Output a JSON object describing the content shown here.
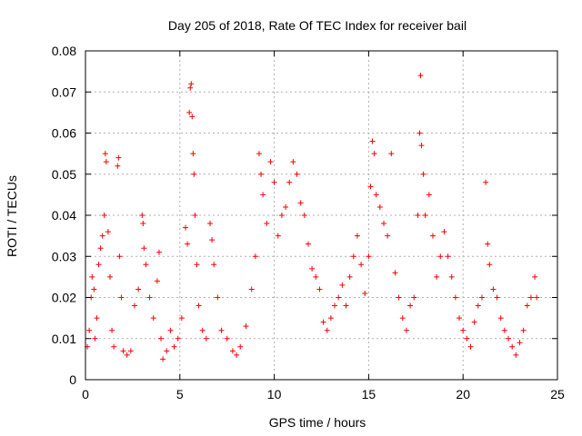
{
  "chart_data": {
    "type": "scatter",
    "title": "Day 205 of 2018, Rate Of TEC Index for receiver bail",
    "xlabel": "GPS time / hours",
    "ylabel": "ROTI / TECUs",
    "xlim": [
      0,
      25
    ],
    "ylim": [
      0,
      0.08
    ],
    "x_ticks": [
      "0",
      "5",
      "10",
      "15",
      "20",
      "25"
    ],
    "y_ticks": [
      "0",
      "0.01",
      "0.02",
      "0.03",
      "0.04",
      "0.05",
      "0.06",
      "0.07",
      "0.08"
    ],
    "x_tick_values": [
      0,
      5,
      10,
      15,
      20,
      25
    ],
    "y_tick_values": [
      0,
      0.01,
      0.02,
      0.03,
      0.04,
      0.05,
      0.06,
      0.07,
      0.08
    ],
    "grid": true,
    "marker": "plus",
    "color": "#ff0000",
    "series": [
      {
        "points": [
          [
            0.1,
            0.008
          ],
          [
            0.2,
            0.012
          ],
          [
            0.3,
            0.02
          ],
          [
            0.35,
            0.025
          ],
          [
            0.45,
            0.022
          ],
          [
            0.5,
            0.01
          ],
          [
            0.6,
            0.015
          ],
          [
            0.7,
            0.028
          ],
          [
            0.8,
            0.032
          ],
          [
            0.9,
            0.035
          ],
          [
            1.0,
            0.04
          ],
          [
            1.05,
            0.055
          ],
          [
            1.1,
            0.053
          ],
          [
            1.2,
            0.036
          ],
          [
            1.3,
            0.025
          ],
          [
            1.4,
            0.012
          ],
          [
            1.5,
            0.008
          ],
          [
            1.7,
            0.052
          ],
          [
            1.75,
            0.054
          ],
          [
            1.8,
            0.03
          ],
          [
            1.9,
            0.02
          ],
          [
            2.0,
            0.007
          ],
          [
            2.2,
            0.006
          ],
          [
            2.4,
            0.007
          ],
          [
            2.6,
            0.018
          ],
          [
            2.8,
            0.022
          ],
          [
            3.0,
            0.04
          ],
          [
            3.05,
            0.038
          ],
          [
            3.1,
            0.032
          ],
          [
            3.2,
            0.028
          ],
          [
            3.4,
            0.02
          ],
          [
            3.6,
            0.015
          ],
          [
            3.8,
            0.024
          ],
          [
            3.9,
            0.031
          ],
          [
            4.0,
            0.01
          ],
          [
            4.1,
            0.005
          ],
          [
            4.3,
            0.007
          ],
          [
            4.5,
            0.012
          ],
          [
            4.7,
            0.008
          ],
          [
            4.9,
            0.01
          ],
          [
            5.1,
            0.015
          ],
          [
            5.3,
            0.037
          ],
          [
            5.4,
            0.033
          ],
          [
            5.5,
            0.065
          ],
          [
            5.55,
            0.071
          ],
          [
            5.6,
            0.072
          ],
          [
            5.65,
            0.064
          ],
          [
            5.7,
            0.055
          ],
          [
            5.75,
            0.05
          ],
          [
            5.8,
            0.04
          ],
          [
            5.9,
            0.028
          ],
          [
            6.0,
            0.018
          ],
          [
            6.2,
            0.012
          ],
          [
            6.4,
            0.01
          ],
          [
            6.6,
            0.038
          ],
          [
            6.7,
            0.034
          ],
          [
            6.8,
            0.028
          ],
          [
            7.0,
            0.02
          ],
          [
            7.2,
            0.012
          ],
          [
            7.5,
            0.01
          ],
          [
            7.8,
            0.007
          ],
          [
            8.0,
            0.006
          ],
          [
            8.2,
            0.008
          ],
          [
            8.5,
            0.013
          ],
          [
            8.8,
            0.022
          ],
          [
            9.0,
            0.03
          ],
          [
            9.2,
            0.055
          ],
          [
            9.3,
            0.05
          ],
          [
            9.4,
            0.045
          ],
          [
            9.6,
            0.038
          ],
          [
            9.8,
            0.053
          ],
          [
            10.0,
            0.048
          ],
          [
            10.2,
            0.035
          ],
          [
            10.4,
            0.04
          ],
          [
            10.6,
            0.042
          ],
          [
            10.8,
            0.048
          ],
          [
            11.0,
            0.053
          ],
          [
            11.2,
            0.05
          ],
          [
            11.4,
            0.043
          ],
          [
            11.6,
            0.04
          ],
          [
            11.8,
            0.033
          ],
          [
            12.0,
            0.027
          ],
          [
            12.2,
            0.025
          ],
          [
            12.4,
            0.022
          ],
          [
            12.6,
            0.014
          ],
          [
            12.8,
            0.012
          ],
          [
            13.0,
            0.015
          ],
          [
            13.2,
            0.018
          ],
          [
            13.4,
            0.02
          ],
          [
            13.6,
            0.023
          ],
          [
            13.8,
            0.018
          ],
          [
            14.0,
            0.025
          ],
          [
            14.2,
            0.03
          ],
          [
            14.4,
            0.035
          ],
          [
            14.6,
            0.028
          ],
          [
            14.8,
            0.021
          ],
          [
            15.0,
            0.03
          ],
          [
            15.1,
            0.047
          ],
          [
            15.2,
            0.058
          ],
          [
            15.3,
            0.055
          ],
          [
            15.4,
            0.045
          ],
          [
            15.6,
            0.042
          ],
          [
            15.8,
            0.038
          ],
          [
            16.0,
            0.035
          ],
          [
            16.2,
            0.055
          ],
          [
            16.4,
            0.026
          ],
          [
            16.6,
            0.02
          ],
          [
            16.8,
            0.015
          ],
          [
            17.0,
            0.012
          ],
          [
            17.2,
            0.018
          ],
          [
            17.4,
            0.02
          ],
          [
            17.6,
            0.04
          ],
          [
            17.7,
            0.06
          ],
          [
            17.75,
            0.074
          ],
          [
            17.8,
            0.057
          ],
          [
            17.9,
            0.05
          ],
          [
            18.0,
            0.04
          ],
          [
            18.2,
            0.045
          ],
          [
            18.4,
            0.035
          ],
          [
            18.6,
            0.025
          ],
          [
            18.8,
            0.03
          ],
          [
            19.0,
            0.036
          ],
          [
            19.2,
            0.03
          ],
          [
            19.4,
            0.025
          ],
          [
            19.6,
            0.02
          ],
          [
            19.8,
            0.015
          ],
          [
            20.0,
            0.012
          ],
          [
            20.2,
            0.01
          ],
          [
            20.4,
            0.008
          ],
          [
            20.6,
            0.014
          ],
          [
            20.8,
            0.018
          ],
          [
            21.0,
            0.02
          ],
          [
            21.2,
            0.048
          ],
          [
            21.3,
            0.033
          ],
          [
            21.4,
            0.028
          ],
          [
            21.6,
            0.022
          ],
          [
            21.8,
            0.02
          ],
          [
            22.0,
            0.015
          ],
          [
            22.2,
            0.012
          ],
          [
            22.4,
            0.01
          ],
          [
            22.6,
            0.008
          ],
          [
            22.8,
            0.006
          ],
          [
            23.0,
            0.009
          ],
          [
            23.2,
            0.012
          ],
          [
            23.4,
            0.018
          ],
          [
            23.6,
            0.02
          ],
          [
            23.8,
            0.025
          ],
          [
            23.9,
            0.02
          ]
        ]
      }
    ]
  }
}
